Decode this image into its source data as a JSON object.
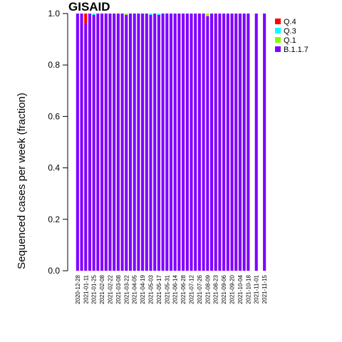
{
  "chart_data": {
    "type": "bar",
    "stacked": true,
    "title": "GISAID",
    "ylabel": "Sequenced cases per week (fraction)",
    "xlabel": "",
    "ylim": [
      0,
      1.0
    ],
    "y_ticks": [
      "0.0",
      "0.2",
      "0.4",
      "0.6",
      "0.8",
      "1.0"
    ],
    "legend_placement": "top-right, outside plot",
    "x_tick_labels": [
      "2020-12-28",
      "2021-01-11",
      "2021-01-25",
      "2021-02-08",
      "2021-02-22",
      "2021-03-08",
      "2021-03-22",
      "2021-04-05",
      "2021-04-19",
      "2021-05-03",
      "2021-05-17",
      "2021-05-31",
      "2021-06-14",
      "2021-06-28",
      "2021-07-12",
      "2021-07-26",
      "2021-08-09",
      "2021-08-23",
      "2021-09-06",
      "2021-09-20",
      "2021-10-04",
      "2021-10-18",
      "2021-11-01",
      "2021-11-15"
    ],
    "categories": [
      "2020-12-28",
      "2021-01-04",
      "2021-01-11",
      "2021-01-18",
      "2021-01-25",
      "2021-02-01",
      "2021-02-08",
      "2021-02-15",
      "2021-02-22",
      "2021-03-01",
      "2021-03-08",
      "2021-03-15",
      "2021-03-22",
      "2021-03-29",
      "2021-04-05",
      "2021-04-12",
      "2021-04-19",
      "2021-04-26",
      "2021-05-03",
      "2021-05-10",
      "2021-05-17",
      "2021-05-24",
      "2021-05-31",
      "2021-06-07",
      "2021-06-14",
      "2021-06-21",
      "2021-06-28",
      "2021-07-05",
      "2021-07-12",
      "2021-07-19",
      "2021-07-26",
      "2021-08-02",
      "2021-08-09",
      "2021-08-16",
      "2021-08-23",
      "2021-08-30",
      "2021-09-06",
      "2021-09-13",
      "2021-09-20",
      "2021-09-27",
      "2021-10-04",
      "2021-10-11",
      "2021-10-18",
      "2021-10-25",
      "2021-11-01",
      "2021-11-08",
      "2021-11-15"
    ],
    "series": [
      {
        "name": "B.1.1.7",
        "color": "#8000ff",
        "values": [
          1,
          1,
          0.96,
          1,
          0.995,
          1,
          1,
          1,
          1,
          1,
          1,
          1,
          0.995,
          1,
          1,
          1,
          1,
          1,
          0.995,
          1,
          0.995,
          1,
          1,
          1,
          1,
          1,
          1,
          1,
          1,
          1,
          1,
          1,
          0.99,
          1,
          1,
          1,
          1,
          1,
          1,
          1,
          1,
          1,
          1,
          null,
          1,
          null,
          1
        ]
      },
      {
        "name": "Q.1",
        "color": "#80ff00",
        "values": [
          0,
          0,
          0,
          0,
          0,
          0,
          0,
          0,
          0,
          0,
          0,
          0,
          0.005,
          0,
          0,
          0,
          0,
          0,
          0,
          0,
          0,
          0,
          0,
          0,
          0,
          0,
          0,
          0,
          0,
          0,
          0,
          0,
          0.01,
          0,
          0,
          0,
          0,
          0,
          0,
          0,
          0,
          0,
          0,
          null,
          0,
          null,
          0
        ]
      },
      {
        "name": "Q.3",
        "color": "#00ffff",
        "values": [
          0,
          0,
          0,
          0,
          0.005,
          0,
          0,
          0,
          0,
          0,
          0,
          0,
          0,
          0,
          0,
          0,
          0,
          0,
          0.005,
          0,
          0.005,
          0,
          0,
          0,
          0,
          0,
          0,
          0,
          0,
          0,
          0,
          0,
          0,
          0,
          0,
          0,
          0,
          0,
          0,
          0,
          0,
          0,
          0,
          null,
          0,
          null,
          0
        ]
      },
      {
        "name": "Q.4",
        "color": "#ff0000",
        "values": [
          0,
          0,
          0.04,
          0,
          0,
          0,
          0,
          0,
          0,
          0,
          0,
          0,
          0,
          0,
          0,
          0,
          0,
          0,
          0,
          0,
          0,
          0,
          0,
          0,
          0,
          0,
          0,
          0,
          0,
          0,
          0,
          0,
          0,
          0,
          0,
          0,
          0,
          0,
          0,
          0,
          0,
          0,
          0,
          null,
          0,
          null,
          0
        ]
      }
    ],
    "legend_order": [
      "Q.4",
      "Q.3",
      "Q.1",
      "B.1.1.7"
    ]
  }
}
